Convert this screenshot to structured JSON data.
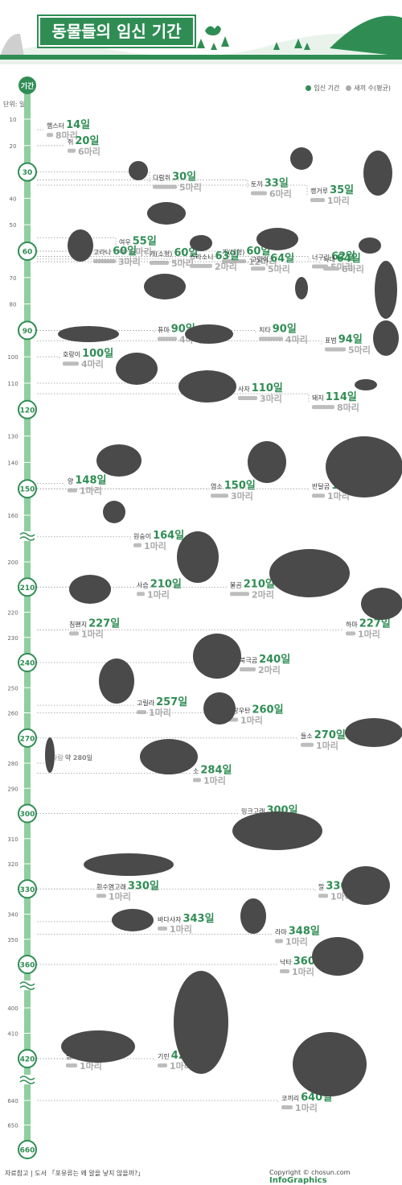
{
  "title": "동물들의 임신 기간",
  "legend": {
    "gestation_label": "임신 기간",
    "offspring_label": "새끼 수(평균)",
    "gestation_color": "#2f8d54",
    "offspring_color": "#aaaaaa"
  },
  "unit_label": "단위: 일",
  "footer": {
    "source": "자료참고 | 도서 「포유류는 왜 알을 낳지 않을까?」",
    "copyright": "Copyright © chosun.com",
    "brand": "InfoGraphics"
  },
  "chart_data": {
    "type": "scatter",
    "axis": {
      "title": "기간",
      "highlight_ticks": [
        "30",
        "60",
        "90",
        "120",
        "150",
        "210",
        "240",
        "270",
        "300",
        "330",
        "360",
        "420",
        "660"
      ],
      "ticks": [
        "10",
        "20",
        "30",
        "40",
        "50",
        "60",
        "70",
        "80",
        "90",
        "100",
        "110",
        "120",
        "130",
        "140",
        "150",
        "160",
        "200",
        "210",
        "220",
        "230",
        "240",
        "250",
        "260",
        "270",
        "280",
        "290",
        "300",
        "310",
        "320",
        "330",
        "340",
        "350",
        "360",
        "400",
        "410",
        "420",
        "640",
        "650",
        "660"
      ],
      "breaks_after": [
        "160",
        "360",
        "420"
      ]
    },
    "animals": [
      {
        "name": "햄스터",
        "days": 14,
        "offspring": 8,
        "days_text": "14일",
        "off_text": "8마리"
      },
      {
        "name": "쥐",
        "days": 20,
        "offspring": 6,
        "days_text": "20일",
        "off_text": "6마리"
      },
      {
        "name": "다람쥐",
        "days": 30,
        "offspring": 5,
        "days_text": "30일",
        "off_text": "5마리"
      },
      {
        "name": "토끼",
        "days": 33,
        "offspring": 6,
        "days_text": "33일",
        "off_text": "6마리"
      },
      {
        "name": "캥거루",
        "days": 35,
        "offspring": 1,
        "days_text": "35일",
        "off_text": "1마리"
      },
      {
        "name": "여우",
        "days": 55,
        "offspring": 6,
        "days_text": "55일",
        "off_text": "6마리"
      },
      {
        "name": "고라니",
        "days": 60,
        "offspring": 3,
        "days_text": "60일",
        "off_text": "3마리"
      },
      {
        "name": "개(소형)",
        "days": 60,
        "offspring": 5,
        "days_text": "60일",
        "off_text": "5마리"
      },
      {
        "name": "개(대형)",
        "days": 60,
        "offspring": 12,
        "days_text": "60일",
        "off_text": "12마리"
      },
      {
        "name": "너구리",
        "days": 62,
        "offspring": 5,
        "days_text": "62일",
        "off_text": "5마리"
      },
      {
        "name": "스라소니",
        "days": 63,
        "offspring": 2,
        "days_text": "63일",
        "off_text": "2마리"
      },
      {
        "name": "고양이",
        "days": 64,
        "offspring": 5,
        "days_text": "64일",
        "off_text": "5마리"
      },
      {
        "name": "늑대",
        "days": 64,
        "offspring": 6,
        "days_text": "64일",
        "off_text": "6마리"
      },
      {
        "name": "퓨마",
        "days": 90,
        "offspring": 4,
        "days_text": "90일",
        "off_text": "4마리"
      },
      {
        "name": "치타",
        "days": 90,
        "offspring": 4,
        "days_text": "90일",
        "off_text": "4마리"
      },
      {
        "name": "표범",
        "days": 94,
        "offspring": 5,
        "days_text": "94일",
        "off_text": "5마리"
      },
      {
        "name": "호랑이",
        "days": 100,
        "offspring": 4,
        "days_text": "100일",
        "off_text": "4마리"
      },
      {
        "name": "사자",
        "days": 110,
        "offspring": 3,
        "days_text": "110일",
        "off_text": "3마리"
      },
      {
        "name": "돼지",
        "days": 114,
        "offspring": 8,
        "days_text": "114일",
        "off_text": "8마리"
      },
      {
        "name": "양",
        "days": 148,
        "offspring": 1,
        "days_text": "148일",
        "off_text": "1마리"
      },
      {
        "name": "염소",
        "days": 150,
        "offspring": 3,
        "days_text": "150일",
        "off_text": "3마리"
      },
      {
        "name": "반달곰",
        "days": 150,
        "offspring": 1,
        "days_text": "150일",
        "off_text": "1마리"
      },
      {
        "name": "원숭이",
        "days": 164,
        "offspring": 1,
        "days_text": "164일",
        "off_text": "1마리"
      },
      {
        "name": "사슴",
        "days": 210,
        "offspring": 1,
        "days_text": "210일",
        "off_text": "1마리"
      },
      {
        "name": "불곰",
        "days": 210,
        "offspring": 2,
        "days_text": "210일",
        "off_text": "2마리"
      },
      {
        "name": "침팬지",
        "days": 227,
        "offspring": 1,
        "days_text": "227일",
        "off_text": "1마리"
      },
      {
        "name": "하마",
        "days": 227,
        "offspring": 1,
        "days_text": "227일",
        "off_text": "1마리"
      },
      {
        "name": "북극곰",
        "days": 240,
        "offspring": 2,
        "days_text": "240일",
        "off_text": "2마리"
      },
      {
        "name": "고릴라",
        "days": 257,
        "offspring": 1,
        "days_text": "257일",
        "off_text": "1마리"
      },
      {
        "name": "오랑우탄",
        "days": 260,
        "offspring": 1,
        "days_text": "260일",
        "off_text": "1마리"
      },
      {
        "name": "들소",
        "days": 270,
        "offspring": 1,
        "days_text": "270일",
        "off_text": "1마리"
      },
      {
        "name": "사람",
        "days": 280,
        "offspring": null,
        "days_text": "약 280일",
        "off_text": ""
      },
      {
        "name": "소",
        "days": 284,
        "offspring": 1,
        "days_text": "284일",
        "off_text": "1마리"
      },
      {
        "name": "밍크고래",
        "days": 300,
        "offspring": 1,
        "days_text": "300일",
        "off_text": "1마리"
      },
      {
        "name": "흰수염고래",
        "days": 330,
        "offspring": 1,
        "days_text": "330일",
        "off_text": "1마리"
      },
      {
        "name": "말",
        "days": 330,
        "offspring": 1,
        "days_text": "330일",
        "off_text": "1마리"
      },
      {
        "name": "바다사자",
        "days": 343,
        "offspring": 1,
        "days_text": "343일",
        "off_text": "1마리"
      },
      {
        "name": "라마",
        "days": 348,
        "offspring": 1,
        "days_text": "348일",
        "off_text": "1마리"
      },
      {
        "name": "낙타",
        "days": 360,
        "offspring": 1,
        "days_text": "360일",
        "off_text": "1마리"
      },
      {
        "name": "범고래",
        "days": 420,
        "offspring": 1,
        "days_text": "420일",
        "off_text": "1마리"
      },
      {
        "name": "기린",
        "days": 420,
        "offspring": 1,
        "days_text": "420일",
        "off_text": "1마리"
      },
      {
        "name": "코끼리",
        "days": 640,
        "offspring": 1,
        "days_text": "640일",
        "off_text": "1마리"
      }
    ]
  }
}
